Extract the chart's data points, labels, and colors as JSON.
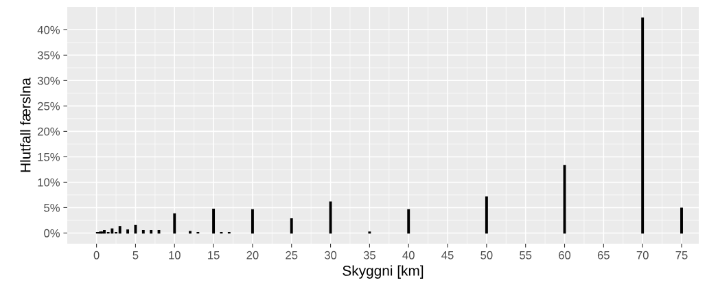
{
  "chart_data": {
    "type": "bar",
    "xlabel": "Skyggni [km]",
    "ylabel": "Hlutfall færslna",
    "x": [
      0.1,
      0.3,
      0.5,
      0.7,
      1,
      1.5,
      2,
      2.5,
      3,
      4,
      5,
      6,
      7,
      8,
      10,
      12,
      13,
      15,
      16,
      17,
      20,
      25,
      30,
      35,
      40,
      50,
      60,
      70,
      75
    ],
    "values": [
      0.1,
      0.1,
      0.2,
      0.2,
      0.5,
      0.1,
      0.8,
      0.1,
      1.3,
      0.6,
      1.5,
      0.5,
      0.5,
      0.5,
      3.8,
      0.3,
      0.1,
      4.7,
      0.1,
      0.1,
      4.6,
      2.8,
      6.1,
      0.2,
      4.6,
      7.1,
      13.3,
      42.3,
      4.9
    ],
    "color": "#000000",
    "xlim": [
      -3.75,
      77.2
    ],
    "ylim": [
      -2.1,
      44.5
    ],
    "xticks": [
      0,
      5,
      10,
      15,
      20,
      25,
      30,
      35,
      40,
      45,
      50,
      55,
      60,
      65,
      70,
      75
    ],
    "yticks": [
      {
        "value": 0,
        "label": "0%"
      },
      {
        "value": 5,
        "label": "5%"
      },
      {
        "value": 10,
        "label": "10%"
      },
      {
        "value": 15,
        "label": "15%"
      },
      {
        "value": 20,
        "label": "20%"
      },
      {
        "value": 25,
        "label": "25%"
      },
      {
        "value": 30,
        "label": "30%"
      },
      {
        "value": 35,
        "label": "35%"
      },
      {
        "value": 40,
        "label": "40%"
      }
    ],
    "grid": true
  }
}
